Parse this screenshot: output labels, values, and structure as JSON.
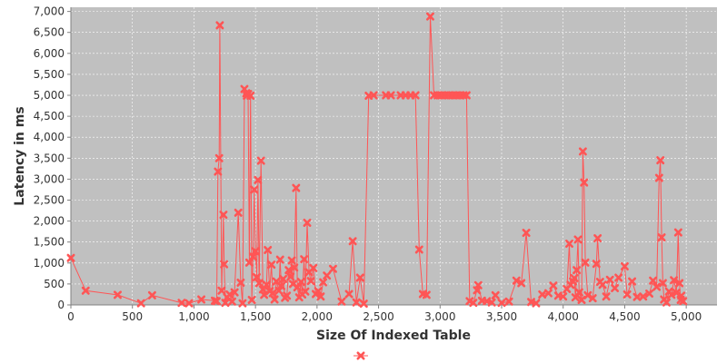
{
  "chart_data": {
    "type": "line",
    "title": "",
    "xlabel": "Size Of Indexed Table",
    "ylabel": "Latency in ms",
    "xlim": [
      0,
      5250
    ],
    "ylim": [
      0,
      7100
    ],
    "x_ticks": [
      0,
      500,
      1000,
      1500,
      2000,
      2500,
      3000,
      3500,
      4000,
      4500,
      5000
    ],
    "y_ticks": [
      0,
      500,
      1000,
      1500,
      2000,
      2500,
      3000,
      3500,
      4000,
      4500,
      5000,
      5500,
      6000,
      6500,
      7000
    ],
    "x_tick_labels": [
      "0",
      "500",
      "1,000",
      "1,500",
      "2,000",
      "2,500",
      "3,000",
      "3,500",
      "4,000",
      "4,500",
      "5,000"
    ],
    "y_tick_labels": [
      "0",
      "500",
      "1,000",
      "1,500",
      "2,000",
      "2,500",
      "3,000",
      "3,500",
      "4,000",
      "4,500",
      "5,000",
      "5,500",
      "6,000",
      "6,500",
      "7,000"
    ],
    "grid": true,
    "legend": "bottom-center",
    "plot_background": "#c0c0c0",
    "series": [
      {
        "color": "#ff5555",
        "marker": "x",
        "points": [
          [
            0,
            1120
          ],
          [
            120,
            340
          ],
          [
            380,
            240
          ],
          [
            570,
            40
          ],
          [
            660,
            230
          ],
          [
            900,
            50
          ],
          [
            960,
            40
          ],
          [
            1060,
            130
          ],
          [
            1170,
            100
          ],
          [
            1185,
            90
          ],
          [
            1195,
            3180
          ],
          [
            1205,
            3500
          ],
          [
            1210,
            6670
          ],
          [
            1225,
            340
          ],
          [
            1240,
            2150
          ],
          [
            1245,
            970
          ],
          [
            1255,
            50
          ],
          [
            1270,
            180
          ],
          [
            1290,
            250
          ],
          [
            1310,
            80
          ],
          [
            1330,
            300
          ],
          [
            1360,
            2200
          ],
          [
            1380,
            530
          ],
          [
            1395,
            40
          ],
          [
            1410,
            5150
          ],
          [
            1425,
            5050
          ],
          [
            1430,
            4990
          ],
          [
            1440,
            5030
          ],
          [
            1450,
            1010
          ],
          [
            1460,
            4990
          ],
          [
            1470,
            120
          ],
          [
            1480,
            1150
          ],
          [
            1490,
            2750
          ],
          [
            1500,
            1280
          ],
          [
            1510,
            660
          ],
          [
            1520,
            2980
          ],
          [
            1530,
            520
          ],
          [
            1545,
            3440
          ],
          [
            1560,
            370
          ],
          [
            1570,
            240
          ],
          [
            1590,
            480
          ],
          [
            1600,
            1310
          ],
          [
            1615,
            330
          ],
          [
            1630,
            960
          ],
          [
            1640,
            280
          ],
          [
            1655,
            130
          ],
          [
            1670,
            560
          ],
          [
            1690,
            340
          ],
          [
            1700,
            1080
          ],
          [
            1710,
            450
          ],
          [
            1725,
            620
          ],
          [
            1740,
            170
          ],
          [
            1755,
            220
          ],
          [
            1770,
            830
          ],
          [
            1785,
            670
          ],
          [
            1795,
            1060
          ],
          [
            1805,
            500
          ],
          [
            1815,
            890
          ],
          [
            1830,
            2790
          ],
          [
            1840,
            420
          ],
          [
            1855,
            180
          ],
          [
            1870,
            550
          ],
          [
            1880,
            250
          ],
          [
            1895,
            1090
          ],
          [
            1905,
            320
          ],
          [
            1920,
            1960
          ],
          [
            1935,
            780
          ],
          [
            1950,
            570
          ],
          [
            1970,
            880
          ],
          [
            1990,
            260
          ],
          [
            2010,
            330
          ],
          [
            2030,
            200
          ],
          [
            2050,
            540
          ],
          [
            2080,
            700
          ],
          [
            2130,
            860
          ],
          [
            2200,
            80
          ],
          [
            2260,
            260
          ],
          [
            2290,
            1520
          ],
          [
            2320,
            60
          ],
          [
            2350,
            650
          ],
          [
            2380,
            30
          ],
          [
            2420,
            4990
          ],
          [
            2460,
            5000
          ],
          [
            2560,
            5000
          ],
          [
            2600,
            5000
          ],
          [
            2680,
            5000
          ],
          [
            2720,
            5000
          ],
          [
            2760,
            5000
          ],
          [
            2800,
            5000
          ],
          [
            2830,
            1320
          ],
          [
            2860,
            260
          ],
          [
            2890,
            240
          ],
          [
            2920,
            6880
          ],
          [
            2950,
            5000
          ],
          [
            2980,
            5000
          ],
          [
            3010,
            5000
          ],
          [
            3040,
            5000
          ],
          [
            3070,
            5000
          ],
          [
            3100,
            5000
          ],
          [
            3130,
            5000
          ],
          [
            3160,
            5000
          ],
          [
            3190,
            5000
          ],
          [
            3215,
            5000
          ],
          [
            3240,
            90
          ],
          [
            3270,
            50
          ],
          [
            3300,
            350
          ],
          [
            3310,
            470
          ],
          [
            3340,
            100
          ],
          [
            3380,
            90
          ],
          [
            3420,
            60
          ],
          [
            3450,
            230
          ],
          [
            3500,
            50
          ],
          [
            3560,
            80
          ],
          [
            3620,
            580
          ],
          [
            3660,
            520
          ],
          [
            3700,
            1720
          ],
          [
            3740,
            70
          ],
          [
            3780,
            40
          ],
          [
            3830,
            250
          ],
          [
            3880,
            280
          ],
          [
            3920,
            460
          ],
          [
            3960,
            220
          ],
          [
            4000,
            200
          ],
          [
            4030,
            380
          ],
          [
            4050,
            1460
          ],
          [
            4060,
            480
          ],
          [
            4080,
            560
          ],
          [
            4090,
            640
          ],
          [
            4100,
            180
          ],
          [
            4110,
            830
          ],
          [
            4120,
            1560
          ],
          [
            4130,
            300
          ],
          [
            4150,
            120
          ],
          [
            4160,
            3660
          ],
          [
            4170,
            2920
          ],
          [
            4180,
            1010
          ],
          [
            4200,
            230
          ],
          [
            4240,
            160
          ],
          [
            4270,
            980
          ],
          [
            4280,
            1590
          ],
          [
            4300,
            550
          ],
          [
            4320,
            480
          ],
          [
            4350,
            200
          ],
          [
            4380,
            600
          ],
          [
            4420,
            400
          ],
          [
            4450,
            650
          ],
          [
            4500,
            920
          ],
          [
            4520,
            250
          ],
          [
            4560,
            560
          ],
          [
            4600,
            190
          ],
          [
            4650,
            200
          ],
          [
            4700,
            270
          ],
          [
            4730,
            580
          ],
          [
            4760,
            430
          ],
          [
            4780,
            3030
          ],
          [
            4790,
            3450
          ],
          [
            4800,
            1610
          ],
          [
            4810,
            520
          ],
          [
            4820,
            130
          ],
          [
            4840,
            60
          ],
          [
            4860,
            320
          ],
          [
            4880,
            240
          ],
          [
            4900,
            590
          ],
          [
            4920,
            290
          ],
          [
            4935,
            1730
          ],
          [
            4945,
            520
          ],
          [
            4955,
            120
          ],
          [
            4960,
            220
          ],
          [
            4975,
            90
          ]
        ]
      }
    ]
  }
}
